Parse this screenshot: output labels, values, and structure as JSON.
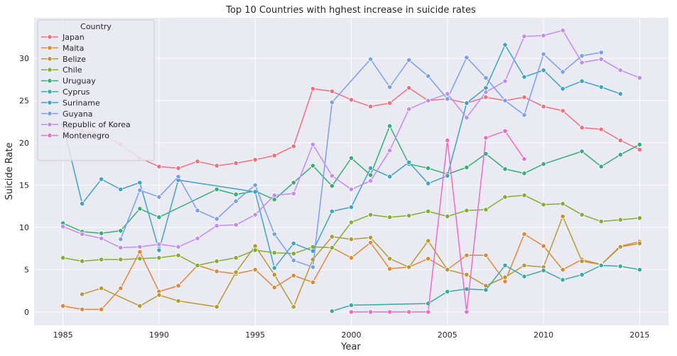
{
  "chart_data": {
    "type": "line",
    "title": "Top 10 Countries with hghest increase in suicide rates",
    "xlabel": "Year",
    "ylabel": "Suicide Rate",
    "xlim": [
      1983.5,
      2016.5
    ],
    "ylim": [
      -1.6,
      34.8
    ],
    "xticks": [
      1985,
      1990,
      1995,
      2000,
      2005,
      2010,
      2015
    ],
    "yticks": [
      0,
      5,
      10,
      15,
      20,
      25,
      30
    ],
    "grid": true,
    "legend": {
      "title": "Country",
      "position": "top-left"
    },
    "series": [
      {
        "name": "Japan",
        "color": "#f07080",
        "x": [
          1985,
          1986,
          1987,
          1988,
          1989,
          1990,
          1991,
          1992,
          1993,
          1994,
          1995,
          1996,
          1997,
          1998,
          1999,
          2000,
          2001,
          2002,
          2003,
          2004,
          2005,
          2006,
          2007,
          2008,
          2009,
          2010,
          2011,
          2012,
          2013,
          2014,
          2015
        ],
        "y": [
          21.9,
          21.4,
          21.0,
          19.8,
          18.2,
          17.2,
          17.0,
          17.8,
          17.3,
          17.6,
          18.0,
          18.5,
          19.6,
          26.4,
          26.1,
          25.1,
          24.3,
          24.7,
          26.5,
          25.0,
          25.2,
          24.7,
          25.4,
          25.0,
          25.4,
          24.3,
          23.8,
          21.8,
          21.6,
          20.3,
          19.2
        ]
      },
      {
        "name": "Malta",
        "color": "#e0883a",
        "x": [
          1985,
          1986,
          1987,
          1988,
          1989,
          1990,
          1991,
          1992,
          1993,
          1994,
          1995,
          1996,
          1997,
          1998,
          1999,
          2000,
          2001,
          2002,
          2003,
          2004,
          2005,
          2006,
          2007,
          2008,
          2009,
          2010,
          2011,
          2012,
          2013,
          2014,
          2015
        ],
        "y": [
          0.7,
          0.3,
          0.3,
          2.8,
          7.1,
          2.4,
          3.1,
          5.5,
          4.8,
          4.5,
          5.0,
          2.9,
          4.3,
          3.5,
          7.6,
          6.4,
          8.2,
          5.1,
          5.3,
          6.3,
          5.0,
          6.7,
          6.7,
          3.6,
          9.2,
          7.8,
          5.0,
          6.2,
          5.6,
          7.8,
          8.3
        ]
      },
      {
        "name": "Belize",
        "color": "#b59a35",
        "x": [
          1986,
          1987,
          1989,
          1990,
          1991,
          1993,
          1994,
          1995,
          1996,
          1997,
          1998,
          1999,
          2000,
          2001,
          2002,
          2003,
          2004,
          2005,
          2006,
          2007,
          2008,
          2009,
          2010,
          2011,
          2012,
          2013,
          2014,
          2015
        ],
        "y": [
          2.1,
          2.8,
          0.7,
          2.0,
          1.3,
          0.6,
          4.7,
          7.8,
          4.4,
          0.6,
          6.2,
          8.9,
          8.6,
          8.8,
          6.3,
          5.3,
          8.4,
          5.0,
          4.4,
          3.1,
          4.1,
          5.5,
          5.3,
          11.3,
          6.0,
          5.6,
          7.7,
          8.1
        ]
      },
      {
        "name": "Chile",
        "color": "#85ad35",
        "x": [
          1985,
          1986,
          1987,
          1988,
          1989,
          1990,
          1991,
          1992,
          1993,
          1994,
          1995,
          1996,
          1997,
          1998,
          1999,
          2000,
          2001,
          2002,
          2003,
          2004,
          2005,
          2006,
          2007,
          2008,
          2009,
          2010,
          2011,
          2012,
          2013,
          2014,
          2015
        ],
        "y": [
          6.4,
          6.0,
          6.2,
          6.2,
          6.3,
          6.4,
          6.7,
          5.5,
          6.0,
          6.4,
          7.3,
          7.0,
          6.9,
          7.7,
          7.6,
          10.6,
          11.5,
          11.2,
          11.4,
          11.9,
          11.3,
          12.0,
          12.1,
          13.6,
          13.8,
          12.7,
          12.8,
          11.5,
          10.7,
          10.9,
          11.1
        ]
      },
      {
        "name": "Uruguay",
        "color": "#35ae78",
        "x": [
          1985,
          1986,
          1987,
          1988,
          1989,
          1990,
          1993,
          1994,
          1995,
          1996,
          1997,
          1998,
          1999,
          2000,
          2001,
          2002,
          2003,
          2004,
          2005,
          2006,
          2007,
          2008,
          2009,
          2010,
          2012,
          2013,
          2014,
          2015
        ],
        "y": [
          10.5,
          9.5,
          9.3,
          9.6,
          12.2,
          11.2,
          14.5,
          13.9,
          14.3,
          13.3,
          15.3,
          17.3,
          14.9,
          18.2,
          16.2,
          22.0,
          17.5,
          17.0,
          16.3,
          17.1,
          18.7,
          16.9,
          16.4,
          17.5,
          19.0,
          17.2,
          18.6,
          19.8
        ]
      },
      {
        "name": "Cyprus",
        "color": "#3aaaa8",
        "x": [
          1999,
          2000,
          2004,
          2005,
          2006,
          2007,
          2008,
          2009,
          2010,
          2011,
          2012,
          2013,
          2014,
          2015
        ],
        "y": [
          0.1,
          0.8,
          1.0,
          2.4,
          2.7,
          2.6,
          5.5,
          4.2,
          4.9,
          3.8,
          4.4,
          5.5,
          5.4,
          5.0
        ]
      },
      {
        "name": "Suriname",
        "color": "#3fa3c3",
        "x": [
          1985,
          1986,
          1987,
          1988,
          1989,
          1990,
          1991,
          1995,
          1996,
          1997,
          1998,
          1999,
          2000,
          2001,
          2002,
          2003,
          2004,
          2005,
          2006,
          2007,
          2008,
          2009,
          2010,
          2011,
          2012,
          2013,
          2014
        ],
        "y": [
          22.2,
          12.8,
          15.7,
          14.5,
          15.3,
          7.3,
          15.6,
          14.2,
          5.2,
          8.1,
          7.2,
          11.9,
          12.4,
          17.0,
          16.0,
          17.7,
          15.2,
          16.1,
          24.7,
          26.5,
          31.6,
          27.8,
          28.6,
          26.4,
          27.3,
          26.6,
          25.8
        ]
      },
      {
        "name": "Guyana",
        "color": "#7b9ef0",
        "x": [
          1988,
          1989,
          1990,
          1991,
          1992,
          1993,
          1994,
          1995,
          1996,
          1997,
          1998,
          1999,
          2001,
          2002,
          2003,
          2004,
          2005,
          2006,
          2007,
          2008,
          2009,
          2010,
          2011,
          2012,
          2013
        ],
        "y": [
          8.6,
          14.4,
          13.6,
          16.0,
          12.0,
          11.0,
          13.1,
          15.0,
          9.2,
          6.1,
          5.3,
          24.8,
          29.9,
          26.6,
          29.8,
          27.9,
          25.2,
          30.1,
          27.7,
          25.0,
          23.3,
          30.5,
          28.4,
          30.3,
          30.7
        ]
      },
      {
        "name": "Republic of Korea",
        "color": "#c28cf0",
        "x": [
          1985,
          1986,
          1987,
          1988,
          1989,
          1990,
          1991,
          1992,
          1993,
          1994,
          1995,
          1996,
          1997,
          1998,
          1999,
          2000,
          2001,
          2002,
          2003,
          2004,
          2005,
          2006,
          2007,
          2008,
          2009,
          2010,
          2011,
          2012,
          2013,
          2014,
          2015
        ],
        "y": [
          10.1,
          9.2,
          8.7,
          7.6,
          7.7,
          8.0,
          7.7,
          8.7,
          10.2,
          10.3,
          11.5,
          13.8,
          14.0,
          19.8,
          16.1,
          14.5,
          15.5,
          19.1,
          24.0,
          25.0,
          25.8,
          23.0,
          26.0,
          27.3,
          32.6,
          32.7,
          33.3,
          29.5,
          29.9,
          28.6,
          27.7
        ]
      },
      {
        "name": "Montenegro",
        "color": "#ef6ac9",
        "x": [
          2000,
          2001,
          2002,
          2003,
          2004,
          2005,
          2006,
          2007,
          2008,
          2009
        ],
        "y": [
          0.0,
          0.0,
          0.0,
          0.0,
          0.0,
          20.3,
          0.0,
          20.6,
          21.4,
          18.1
        ]
      }
    ]
  }
}
